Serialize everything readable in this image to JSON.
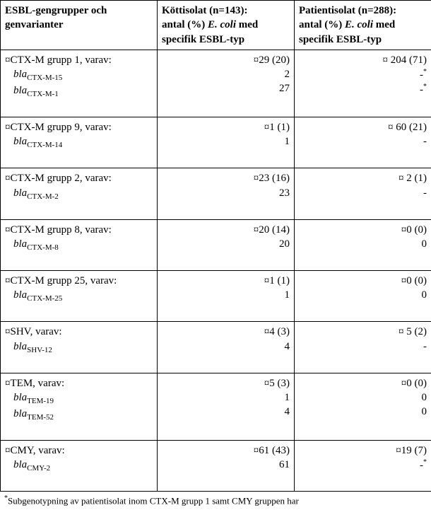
{
  "header": {
    "col1_line1": "ESBL-gengrupper och",
    "col1_line2": "genvarianter",
    "col2_line1": "Köttisolat (n=143):",
    "col2_line2_a": "antal (%) ",
    "col2_line2_b": "E. coli",
    "col2_line2_c": " med",
    "col2_line3": "specifik ESBL-typ",
    "col3_line1": "Patientisolat (n=288):",
    "col3_line2_a": "antal (%) ",
    "col3_line2_b": "E. coli",
    "col3_line2_c": " med",
    "col3_line3": "specifik ESBL-typ"
  },
  "rows": [
    {
      "group": "¤CTX-M grupp 1, varav:",
      "subs": [
        {
          "prefix": "bla",
          "suffix": "CTX-M-15"
        },
        {
          "prefix": "bla",
          "suffix": "CTX-M-1"
        }
      ],
      "meat": [
        "¤29 (20)",
        "2",
        "27"
      ],
      "patient": [
        "¤ 204 (71)",
        "-*",
        "-*"
      ]
    },
    {
      "group": "¤CTX-M grupp 9, varav:",
      "subs": [
        {
          "prefix": "bla",
          "suffix": "CTX-M-14"
        }
      ],
      "meat": [
        "¤1 (1)",
        "1"
      ],
      "patient": [
        "¤ 60 (21)",
        "-"
      ]
    },
    {
      "group": "¤CTX-M grupp 2, varav:",
      "subs": [
        {
          "prefix": "bla",
          "suffix": "CTX-M-2"
        }
      ],
      "meat": [
        "¤23 (16)",
        "23"
      ],
      "patient": [
        "¤ 2 (1)",
        "-"
      ]
    },
    {
      "group": "¤CTX-M grupp 8, varav:",
      "subs": [
        {
          "prefix": "bla",
          "suffix": "CTX-M-8"
        }
      ],
      "meat": [
        "¤20 (14)",
        "20"
      ],
      "patient": [
        "¤0 (0)",
        "0"
      ]
    },
    {
      "group": "¤CTX-M grupp 25, varav:",
      "subs": [
        {
          "prefix": "bla",
          "suffix": "CTX-M-25"
        }
      ],
      "meat": [
        "¤1 (1)",
        "1"
      ],
      "patient": [
        "¤0 (0)",
        "0"
      ]
    },
    {
      "group": "¤SHV, varav:",
      "subs": [
        {
          "prefix": "bla",
          "suffix": "SHV-12"
        }
      ],
      "meat": [
        "¤4 (3)",
        "4"
      ],
      "patient": [
        "¤ 5 (2)",
        "-"
      ]
    },
    {
      "group": "¤TEM, varav:",
      "subs": [
        {
          "prefix": "bla",
          "suffix": "TEM-19"
        },
        {
          "prefix": "bla",
          "suffix": "TEM-52"
        }
      ],
      "meat": [
        "¤5 (3)",
        "1",
        "4"
      ],
      "patient": [
        "¤0 (0)",
        "0",
        "0"
      ]
    },
    {
      "group": "¤CMY, varav:",
      "subs": [
        {
          "prefix": "bla",
          "suffix": "CMY-2"
        }
      ],
      "meat": [
        "¤61 (43)",
        "61"
      ],
      "patient": [
        "¤19 (7)",
        "-*"
      ]
    }
  ],
  "footnote": {
    "star": "*",
    "text": "Subgenotypning av patientisolat inom CTX-M grupp 1 samt CMY gruppen har"
  }
}
